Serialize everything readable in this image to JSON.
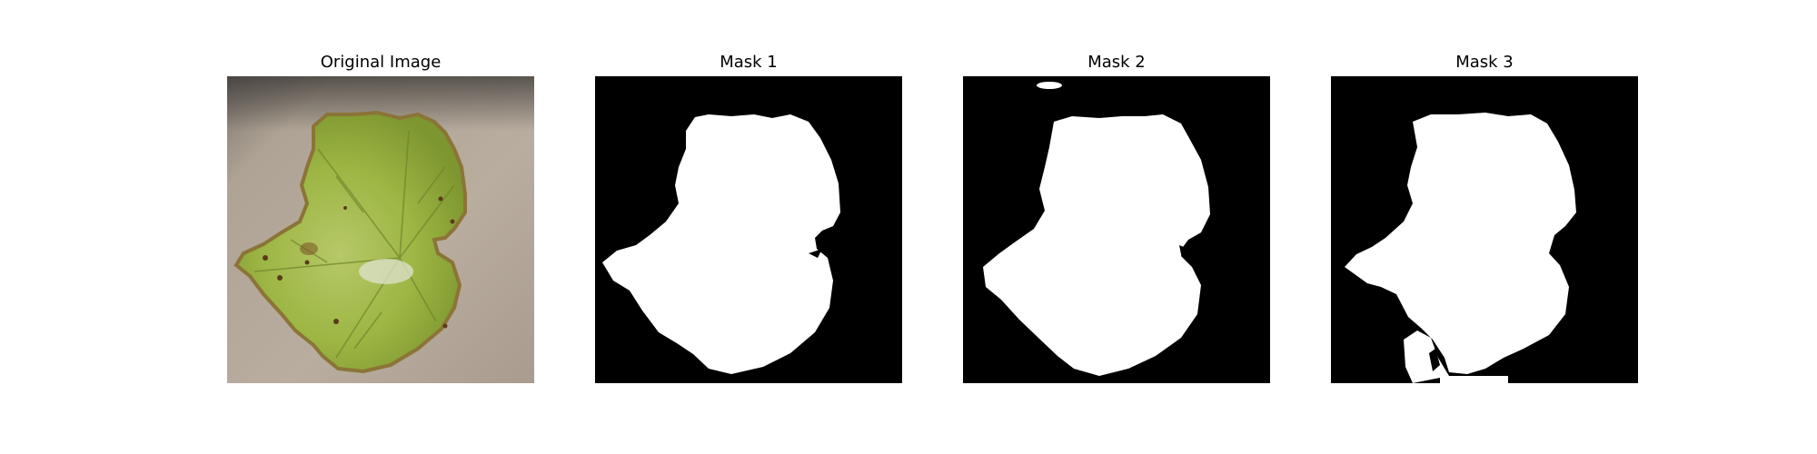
{
  "panels": [
    {
      "title": "Original Image",
      "kind": "photo",
      "subject": "leaf-photo"
    },
    {
      "title": "Mask 1",
      "kind": "mask",
      "colors": {
        "background": "#000000",
        "foreground": "#ffffff"
      }
    },
    {
      "title": "Mask 2",
      "kind": "mask",
      "colors": {
        "background": "#000000",
        "foreground": "#ffffff"
      }
    },
    {
      "title": "Mask 3",
      "kind": "mask",
      "colors": {
        "background": "#000000",
        "foreground": "#ffffff"
      }
    }
  ],
  "colors": {
    "leaf_green": "#9fb846",
    "leaf_dark": "#6f8a2a",
    "leaf_edge": "#8a7a3a",
    "paper": "#b9ad9f",
    "paper_shadow": "#6f6a66"
  }
}
